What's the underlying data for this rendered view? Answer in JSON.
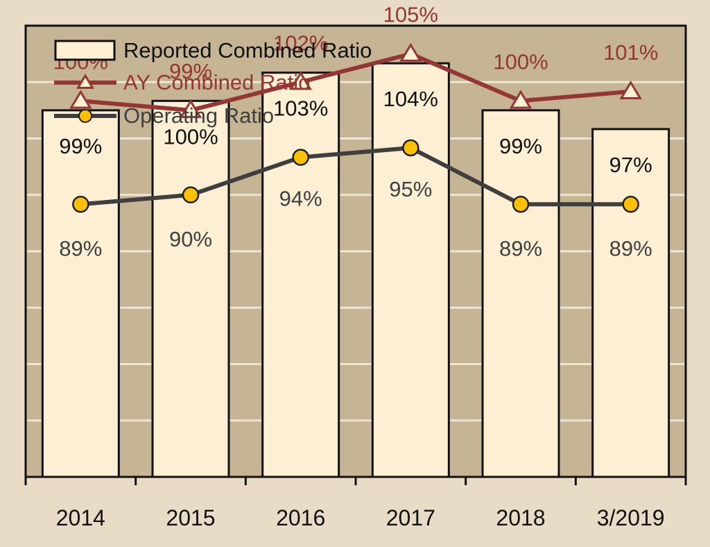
{
  "chart_data": {
    "type": "bar",
    "categories": [
      "2014",
      "2015",
      "2016",
      "2017",
      "2018",
      "3/2019"
    ],
    "ylim": [
      60,
      108
    ],
    "grid": true,
    "legend_position": "top-left",
    "series": [
      {
        "name": "Reported Combined Ratio",
        "type": "bar",
        "values": [
          99,
          100,
          103,
          104,
          99,
          97
        ],
        "labels": [
          "99%",
          "100%",
          "103%",
          "104%",
          "99%",
          "97%"
        ],
        "color": "#fcefd4"
      },
      {
        "name": "AY Combined Ratio",
        "type": "line",
        "marker": "triangle",
        "values": [
          100,
          99,
          102,
          105,
          100,
          101
        ],
        "labels": [
          "100%",
          "99%",
          "102%",
          "105%",
          "100%",
          "101%"
        ],
        "color": "#943634"
      },
      {
        "name": "Operating Ratio",
        "type": "line",
        "marker": "circle",
        "values": [
          89,
          90,
          94,
          95,
          89,
          89
        ],
        "labels": [
          "89%",
          "90%",
          "94%",
          "95%",
          "89%",
          "89%"
        ],
        "color": "#3f3f3f",
        "marker_color": "#ffc000"
      }
    ]
  }
}
